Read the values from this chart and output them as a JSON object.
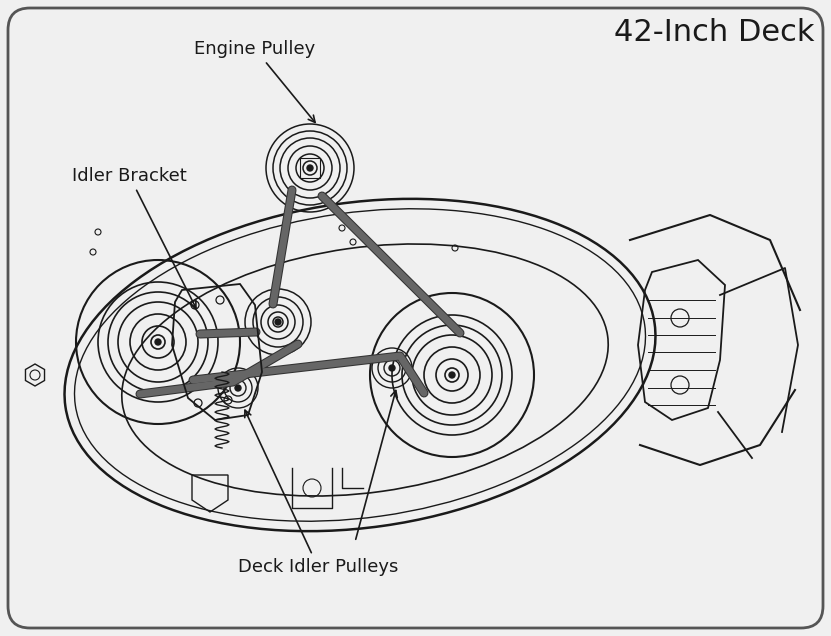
{
  "title": "42-Inch Deck",
  "label_engine_pulley": "Engine Pulley",
  "label_idler_bracket": "Idler Bracket",
  "label_deck_idler_pulleys": "Deck Idler Pulleys",
  "bg_color": "#f0f0f0",
  "border_color": "#555555",
  "line_color": "#1a1a1a",
  "belt_color": "#555555",
  "title_fontsize": 22,
  "label_fontsize": 13,
  "figsize": [
    8.31,
    6.36
  ],
  "dpi": 100
}
